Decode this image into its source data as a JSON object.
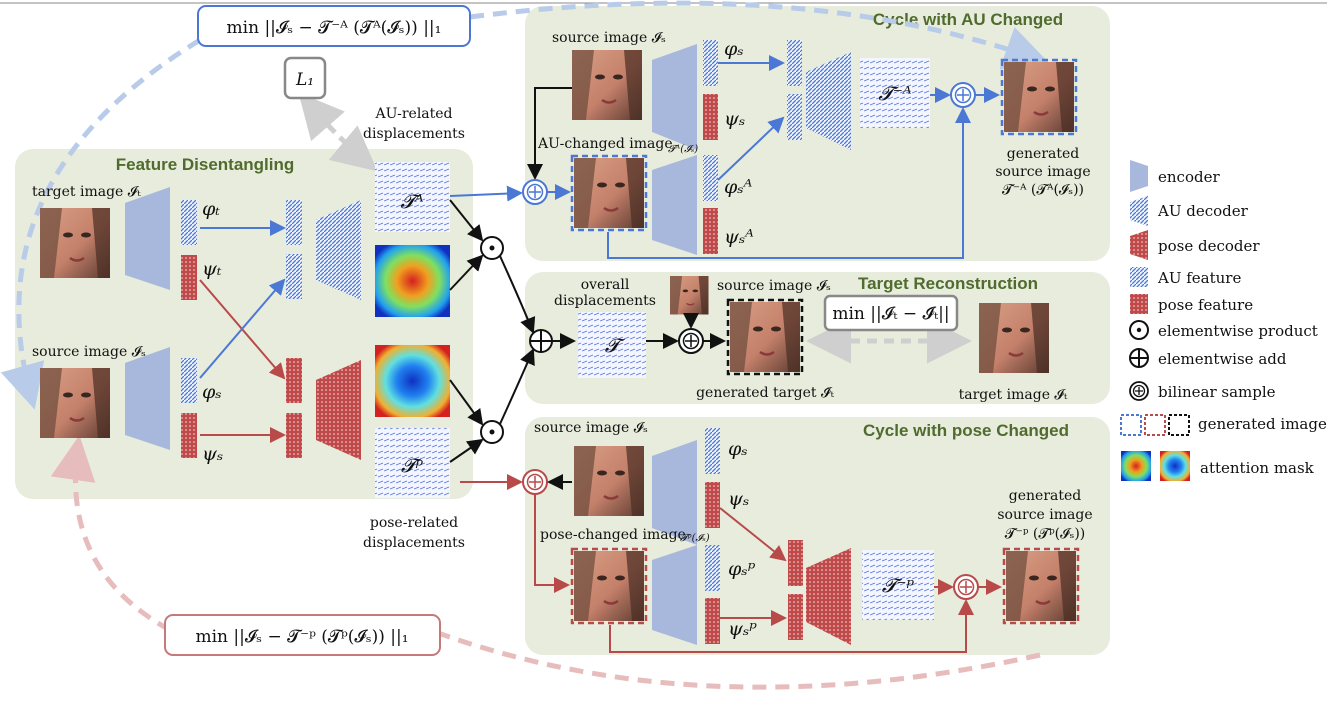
{
  "sections": {
    "cycle_au": "Cycle with AU Changed",
    "feature": "Feature Disentangling",
    "target_recon": "Target  Reconstruction",
    "cycle_pose": "Cycle with pose Changed"
  },
  "formulas": {
    "loss_au": "min ||𝓘ₛ − 𝓣⁻ᴬ (𝓣ᴬ(𝓘ₛ)) ||₁",
    "loss_pose": "min ||𝓘ₛ − 𝓣⁻ᵖ (𝓣ᵖ(𝓘ₛ)) ||₁",
    "l1": "L₁",
    "loss_target": "min ||𝓘ₜ − 𝓘̂ₜ||"
  },
  "labels": {
    "target_image": "target image 𝓘ₜ",
    "source_image_fd": "source image 𝓘ₛ",
    "au_related_1": "AU-related",
    "au_related_2": "displacements",
    "pose_related_1": "pose-related",
    "pose_related_2": "displacements",
    "source_image_au": "source image 𝓘ₛ",
    "au_changed_image": "AU-changed image",
    "au_changed_sub": "𝓣ᴬ(𝓘ₛ)",
    "generated_source_au_1": "generated",
    "generated_source_au_2": "source image",
    "generated_source_au_3": "𝓣⁻ᴬ (𝓣ᴬ(𝓘ₛ))",
    "overall_1": "overall",
    "overall_2": "displacements",
    "source_image_tr": "source image 𝓘ₛ",
    "generated_target": "generated target 𝓘̂ₜ",
    "target_image_tr": "target image 𝓘ₜ",
    "source_image_pose": "source image 𝓘ₛ",
    "pose_changed_image": "pose-changed image",
    "pose_changed_sub": "𝓣ᵖ(𝓘ₛ)",
    "generated_source_pose_1": "generated",
    "generated_source_pose_2": "source image",
    "generated_source_pose_3": "𝓣⁻ᵖ (𝓣ᵖ(𝓘ₛ))"
  },
  "symbols": {
    "phi_t": "φₜ",
    "psi_t": "ψₜ",
    "phi_s": "φₛ",
    "psi_s": "ψₛ",
    "phi_s_A": "φₛᴬ",
    "psi_s_A": "ψₛᴬ",
    "phi_s_p": "φₛᵖ",
    "psi_s_p": "ψₛᵖ",
    "T_A": "𝓣ᴬ",
    "T_p": "𝓣ᵖ",
    "T": "𝓣",
    "T_negA": "𝓣⁻ᴬ",
    "T_negp": "𝓣⁻ᵖ"
  },
  "legend": [
    {
      "key": "encoder",
      "label": "encoder"
    },
    {
      "key": "au_decoder",
      "label": "AU decoder"
    },
    {
      "key": "pose_decoder",
      "label": "pose decoder"
    },
    {
      "key": "au_feature",
      "label": "AU feature"
    },
    {
      "key": "pose_feature",
      "label": "pose feature"
    },
    {
      "key": "elementwise_product",
      "label": "elementwise product"
    },
    {
      "key": "elementwise_add",
      "label": "elementwise add"
    },
    {
      "key": "bilinear_sample",
      "label": "bilinear sample"
    },
    {
      "key": "generated_image",
      "label": "generated image"
    },
    {
      "key": "attention_mask",
      "label": "attention mask"
    }
  ],
  "colors": {
    "panel": "#e8ecdc",
    "encoder": "#a7b8dc",
    "au": "#4a78d4",
    "pose": "#b84a4a",
    "au_loss": "#b8cbe9",
    "pose_loss": "#e7bcbc",
    "title": "#4f6b2d"
  }
}
